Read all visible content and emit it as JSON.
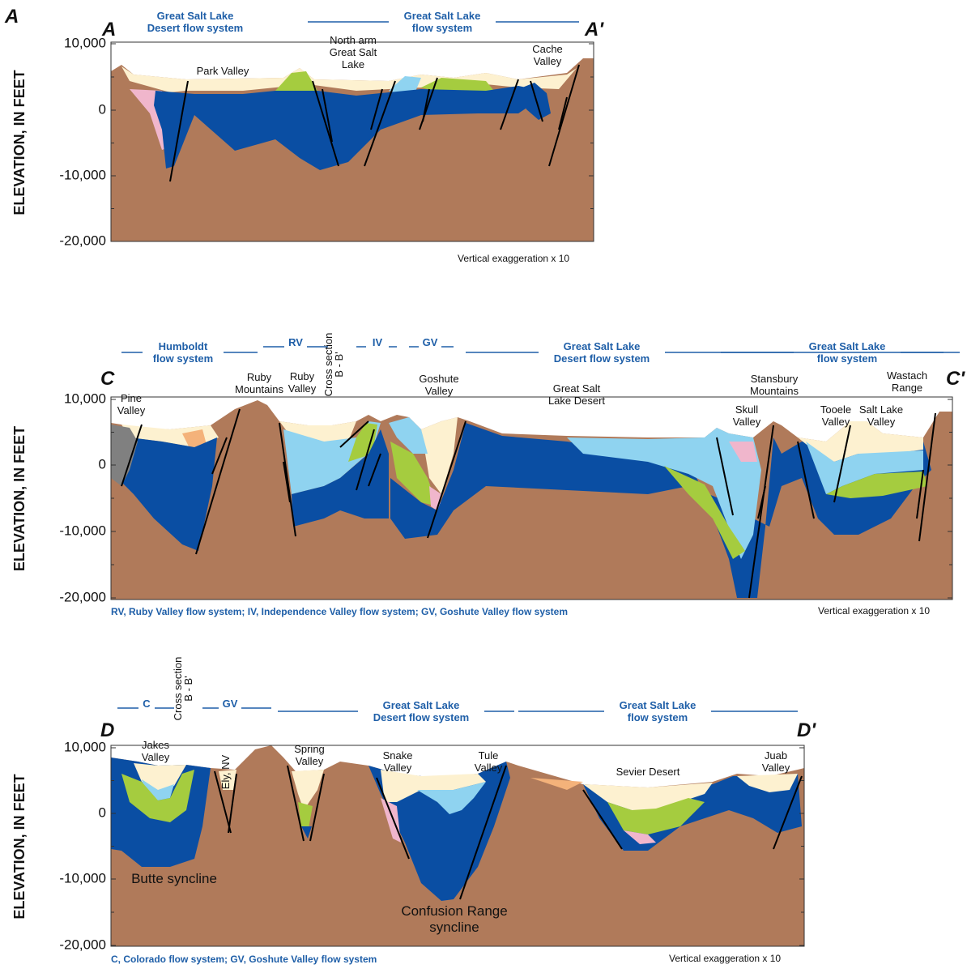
{
  "figure_label": "A",
  "panels": [
    {
      "start": "A",
      "end": "A'",
      "y_axis_label": "ELEVATION, IN FEET",
      "yticks": [
        "10,000",
        "0",
        "-10,000",
        "-20,000"
      ],
      "flow_systems": [
        [
          "Great Salt Lake",
          "Desert flow system"
        ],
        [
          "Great Salt Lake",
          "flow system"
        ]
      ],
      "places": [
        [
          "Park Valley"
        ],
        [
          "North arm",
          "Great Salt",
          "Lake"
        ],
        [
          "Cache",
          "Valley"
        ]
      ],
      "note": "Vertical exaggeration x 10"
    },
    {
      "start": "C",
      "end": "C'",
      "y_axis_label": "ELEVATION, IN FEET",
      "yticks": [
        "10,000",
        "0",
        "-10,000",
        "-20,000"
      ],
      "flow_systems": [
        [
          "Humboldt",
          "flow system"
        ],
        [
          "RV"
        ],
        [
          "IV"
        ],
        [
          "GV"
        ],
        [
          "Great Salt Lake",
          "Desert flow system"
        ],
        [
          "Great Salt Lake",
          "flow system"
        ]
      ],
      "places": [
        [
          "Pine",
          "Valley"
        ],
        [
          "Ruby",
          "Mountains"
        ],
        [
          "Ruby",
          "Valley"
        ],
        [
          "Cross section",
          "B - B'"
        ],
        [
          "Goshute",
          "Valley"
        ],
        [
          "Great Salt",
          "Lake Desert"
        ],
        [
          "Skull",
          "Valley"
        ],
        [
          "Stansbury",
          "Mountains"
        ],
        [
          "Tooele",
          "Valley"
        ],
        [
          "Salt Lake",
          "Valley"
        ],
        [
          "Wastach",
          "Range"
        ]
      ],
      "footnote": "RV, Ruby Valley flow system; IV, Independence Valley flow system; GV, Goshute Valley flow system",
      "note": "Vertical exaggeration x 10"
    },
    {
      "start": "D",
      "end": "D'",
      "y_axis_label": "ELEVATION, IN FEET",
      "yticks": [
        "10,000",
        "0",
        "-10,000",
        "-20,000"
      ],
      "flow_systems": [
        [
          "C"
        ],
        [
          "GV"
        ],
        [
          "Great Salt Lake",
          "Desert flow system"
        ],
        [
          "Great Salt Lake",
          "flow system"
        ]
      ],
      "places": [
        [
          "Jakes",
          "Valley"
        ],
        [
          "Cross section",
          "B - B'"
        ],
        [
          "Ely, NV"
        ],
        [
          "Spring",
          "Valley"
        ],
        [
          "Snake",
          "Valley"
        ],
        [
          "Tule",
          "Valley"
        ],
        [
          "Sevier Desert"
        ],
        [
          "Juab",
          "Valley"
        ],
        [
          "Butte syncline"
        ],
        [
          "Confusion Range",
          "syncline"
        ]
      ],
      "footnote": "C, Colorado flow system; GV, Goshute Valley flow system",
      "note": "Vertical exaggeration x 10"
    }
  ]
}
